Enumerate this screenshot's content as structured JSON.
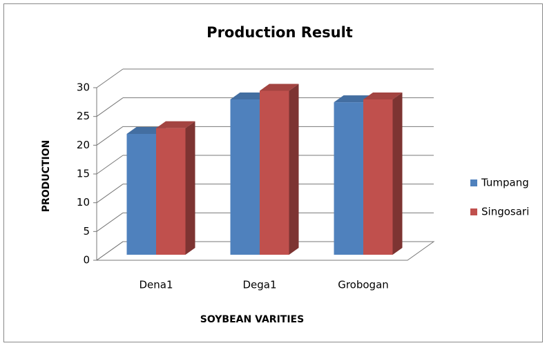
{
  "chart_data": {
    "type": "bar3d",
    "title": "Production Result",
    "x_label": "SOYBEAN VARITIES",
    "y_label": "PRODUCTION",
    "categories": [
      "Dena1",
      "Dega1",
      "Grobogan"
    ],
    "series": [
      {
        "name": "Tumpang",
        "color": "#4f81bd",
        "values": [
          21,
          27,
          26.5
        ]
      },
      {
        "name": "Singosari",
        "color": "#c0504d",
        "values": [
          22,
          28.5,
          27
        ]
      }
    ],
    "ylim": [
      0,
      30
    ],
    "yticks": [
      0,
      5,
      10,
      15,
      20,
      25,
      30
    ],
    "grid": true,
    "legend": "right"
  }
}
